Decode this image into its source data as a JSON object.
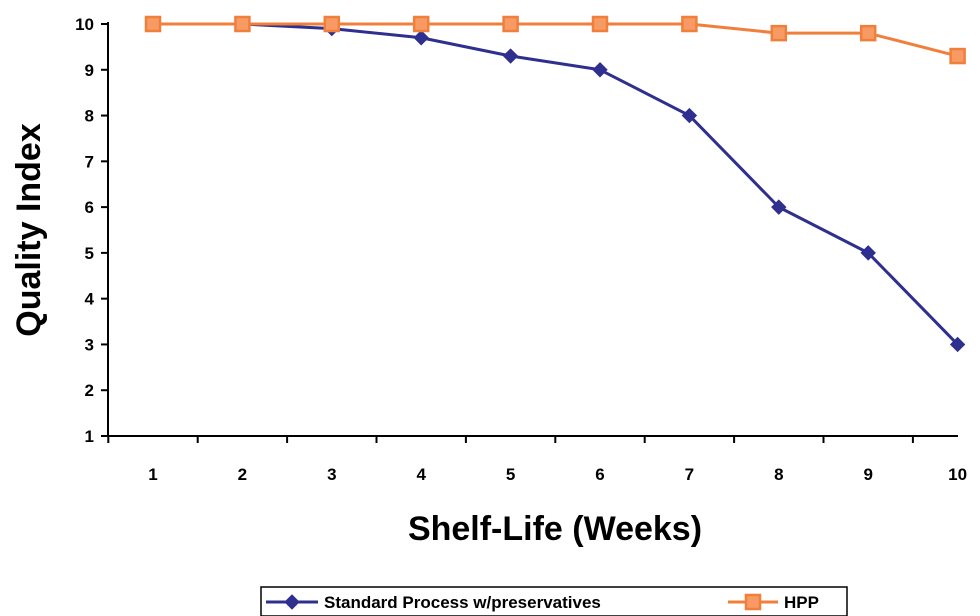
{
  "chart_data": {
    "type": "line",
    "title": "",
    "xlabel": "Shelf-Life (Weeks)",
    "ylabel": "Quality Index",
    "categories": [
      "1",
      "2",
      "3",
      "4",
      "5",
      "6",
      "7",
      "8",
      "9",
      "10"
    ],
    "x": [
      1,
      2,
      3,
      4,
      5,
      6,
      7,
      8,
      9,
      10
    ],
    "ylim": [
      1,
      10
    ],
    "yticks": [
      "1",
      "2",
      "3",
      "4",
      "5",
      "6",
      "7",
      "8",
      "9",
      "10"
    ],
    "grid": false,
    "legend_position": "bottom",
    "series": [
      {
        "name": "Standard Process w/preservatives",
        "values": [
          10,
          10,
          9.9,
          9.7,
          9.3,
          9.0,
          8.0,
          6.0,
          5.0,
          3.0
        ],
        "color": "#2e2f8f",
        "marker": "diamond"
      },
      {
        "name": "HPP",
        "values": [
          10,
          10,
          10,
          10,
          10,
          10,
          10,
          9.8,
          9.8,
          9.3
        ],
        "color": "#f07f3c",
        "marker": "square"
      }
    ]
  }
}
